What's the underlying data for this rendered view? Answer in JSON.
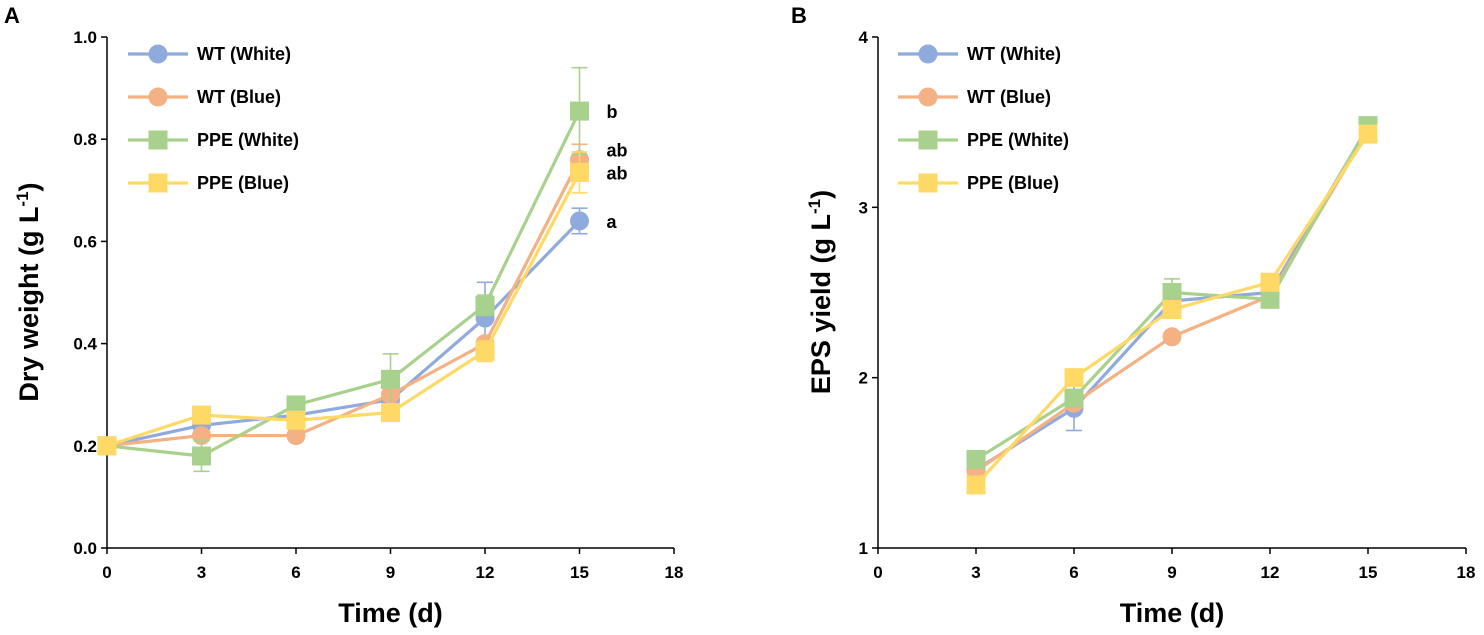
{
  "chart_data": [
    {
      "panel": "A",
      "type": "line",
      "xlabel": "Time (d)",
      "ylabel": "Dry weight (g L-1)",
      "ylabel_main": "Dry weight (g L",
      "ylabel_sup": "-1",
      "ylabel_close": ")",
      "xlim": [
        0,
        18
      ],
      "ylim": [
        0,
        1.0
      ],
      "xticks": [
        0,
        3,
        6,
        9,
        12,
        15,
        18
      ],
      "yticks": [
        0,
        0.2,
        0.4,
        0.6,
        0.8,
        1.0
      ],
      "ytick_labels": [
        "0.0",
        "0.2",
        "0.4",
        "0.6",
        "0.8",
        "1.0"
      ],
      "legend_position": "top-left",
      "series": [
        {
          "name": "WT (White)",
          "marker": "circle",
          "color": "#8FAADC",
          "x": [
            0,
            3,
            6,
            9,
            12,
            15
          ],
          "y": [
            0.2,
            0.24,
            0.26,
            0.29,
            0.45,
            0.64
          ],
          "err": [
            0,
            0.01,
            0.01,
            0.01,
            0.07,
            0.025
          ]
        },
        {
          "name": "WT (Blue)",
          "marker": "circle",
          "color": "#F4B183",
          "x": [
            0,
            3,
            6,
            9,
            12,
            15
          ],
          "y": [
            0.2,
            0.22,
            0.22,
            0.3,
            0.4,
            0.76
          ],
          "err": [
            0,
            0.01,
            0.01,
            0.01,
            0.01,
            0.03
          ]
        },
        {
          "name": "PPE (White)",
          "marker": "square",
          "color": "#A9D18E",
          "x": [
            0,
            3,
            6,
            9,
            12,
            15
          ],
          "y": [
            0.2,
            0.18,
            0.28,
            0.33,
            0.475,
            0.855
          ],
          "err": [
            0,
            0.03,
            0.01,
            0.05,
            0.02,
            0.085
          ]
        },
        {
          "name": "PPE (Blue)",
          "marker": "square",
          "color": "#FFD966",
          "x": [
            0,
            3,
            6,
            9,
            12,
            15
          ],
          "y": [
            0.2,
            0.26,
            0.25,
            0.265,
            0.385,
            0.735
          ],
          "err": [
            0,
            0.01,
            0.01,
            0.01,
            0.02,
            0.04
          ]
        }
      ],
      "annotations": [
        {
          "text": "b",
          "x": 15,
          "y": 0.855
        },
        {
          "text": "ab",
          "x": 15,
          "y": 0.78
        },
        {
          "text": "ab",
          "x": 15,
          "y": 0.735
        },
        {
          "text": "a",
          "x": 15,
          "y": 0.64
        }
      ]
    },
    {
      "panel": "B",
      "type": "line",
      "xlabel": "Time (d)",
      "ylabel": "EPS yield (g L-1)",
      "ylabel_main": "EPS yield (g L",
      "ylabel_sup": "-1",
      "ylabel_close": ")",
      "xlim": [
        0,
        18
      ],
      "ylim": [
        1,
        4
      ],
      "xticks": [
        0,
        3,
        6,
        9,
        12,
        15,
        18
      ],
      "yticks": [
        1,
        2,
        3,
        4
      ],
      "ytick_labels": [
        "1",
        "2",
        "3",
        "4"
      ],
      "legend_position": "top-left",
      "series": [
        {
          "name": "WT (White)",
          "marker": "circle",
          "color": "#8FAADC",
          "x": [
            3,
            6,
            9,
            12,
            15
          ],
          "y": [
            1.46,
            1.82,
            2.45,
            2.5,
            3.47
          ],
          "err": [
            0.02,
            0.13,
            0.03,
            0.03,
            0.02
          ]
        },
        {
          "name": "WT (Blue)",
          "marker": "circle",
          "color": "#F4B183",
          "x": [
            3,
            6,
            9,
            12,
            15
          ],
          "y": [
            1.45,
            1.85,
            2.24,
            2.48,
            3.45
          ],
          "err": [
            0.02,
            0.03,
            0.02,
            0.02,
            0.02
          ]
        },
        {
          "name": "PPE (White)",
          "marker": "square",
          "color": "#A9D18E",
          "x": [
            3,
            6,
            9,
            12,
            15
          ],
          "y": [
            1.52,
            1.88,
            2.5,
            2.46,
            3.48
          ],
          "err": [
            0.02,
            0.04,
            0.08,
            0.05,
            0.02
          ]
        },
        {
          "name": "PPE (Blue)",
          "marker": "square",
          "color": "#FFD966",
          "x": [
            3,
            6,
            9,
            12,
            15
          ],
          "y": [
            1.37,
            2.0,
            2.4,
            2.56,
            3.43
          ],
          "err": [
            0.02,
            0.03,
            0.03,
            0.03,
            0.02
          ]
        }
      ],
      "annotations": []
    }
  ]
}
